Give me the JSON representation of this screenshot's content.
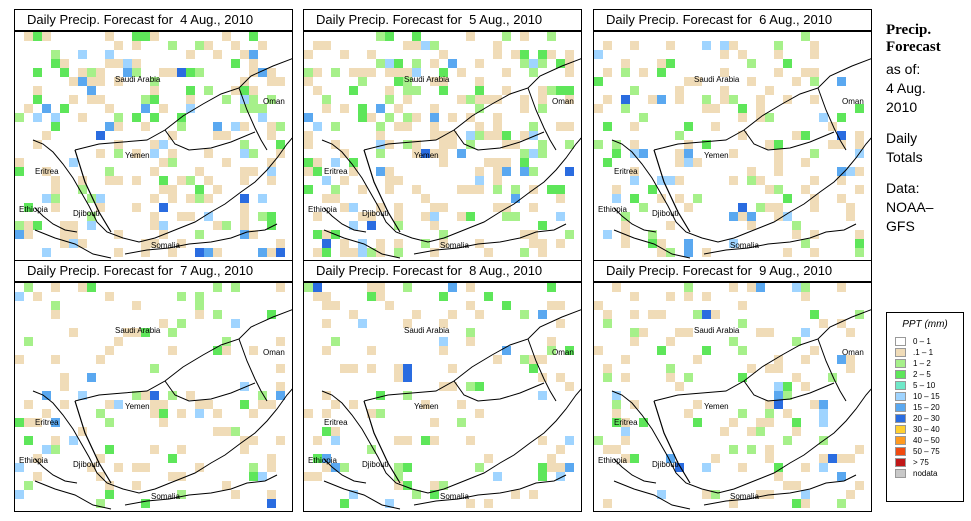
{
  "panels": [
    {
      "title": "Daily Precip. Forecast for  4 Aug., 2010",
      "seed": 11,
      "density": 0.3
    },
    {
      "title": "Daily Precip. Forecast for  5 Aug., 2010",
      "seed": 23,
      "density": 0.34
    },
    {
      "title": "Daily Precip. Forecast for  6 Aug., 2010",
      "seed": 37,
      "density": 0.22
    },
    {
      "title": "Daily Precip. Forecast for  7 Aug., 2010",
      "seed": 41,
      "density": 0.18
    },
    {
      "title": "Daily Precip. Forecast for  8 Aug., 2010",
      "seed": 53,
      "density": 0.17
    },
    {
      "title": "Daily Precip. Forecast for  9 Aug., 2010",
      "seed": 67,
      "density": 0.16
    }
  ],
  "map_labels": {
    "saudi": "Saudi Arabia",
    "oman": "Oman",
    "yemen": "Yemen",
    "eritrea": "Eritrea",
    "ethiopia": "Ethiopia",
    "djibouti": "Djibouti",
    "somalia": "Somalia"
  },
  "side": {
    "heading1": "Precip.",
    "heading2": "Forecast",
    "asof": "as of:",
    "date1": "4 Aug.",
    "date2": "2010",
    "daily": "Daily",
    "totals": "Totals",
    "data": "Data:",
    "noaa": "NOAA–",
    "gfs": "GFS"
  },
  "legend": {
    "title": "PPT (mm)",
    "items": [
      {
        "label": "0 – 1",
        "color": "#ffffff"
      },
      {
        "label": ".1 – 1",
        "color": "#f0dcb8"
      },
      {
        "label": "1 – 2",
        "color": "#a6f08a"
      },
      {
        "label": "2 – 5",
        "color": "#5ee65a"
      },
      {
        "label": "5 – 10",
        "color": "#6fe8c8"
      },
      {
        "label": "10 – 15",
        "color": "#9fd4ff"
      },
      {
        "label": "15 – 20",
        "color": "#5aa8f0"
      },
      {
        "label": "20 – 30",
        "color": "#2a6ce0"
      },
      {
        "label": "30 – 40",
        "color": "#ffd030"
      },
      {
        "label": "40 – 50",
        "color": "#ff9a20"
      },
      {
        "label": "50 – 75",
        "color": "#f04a10"
      },
      {
        "label": "> 75",
        "color": "#c01818"
      },
      {
        "label": "nodata",
        "color": "#c8c8c8"
      }
    ]
  }
}
